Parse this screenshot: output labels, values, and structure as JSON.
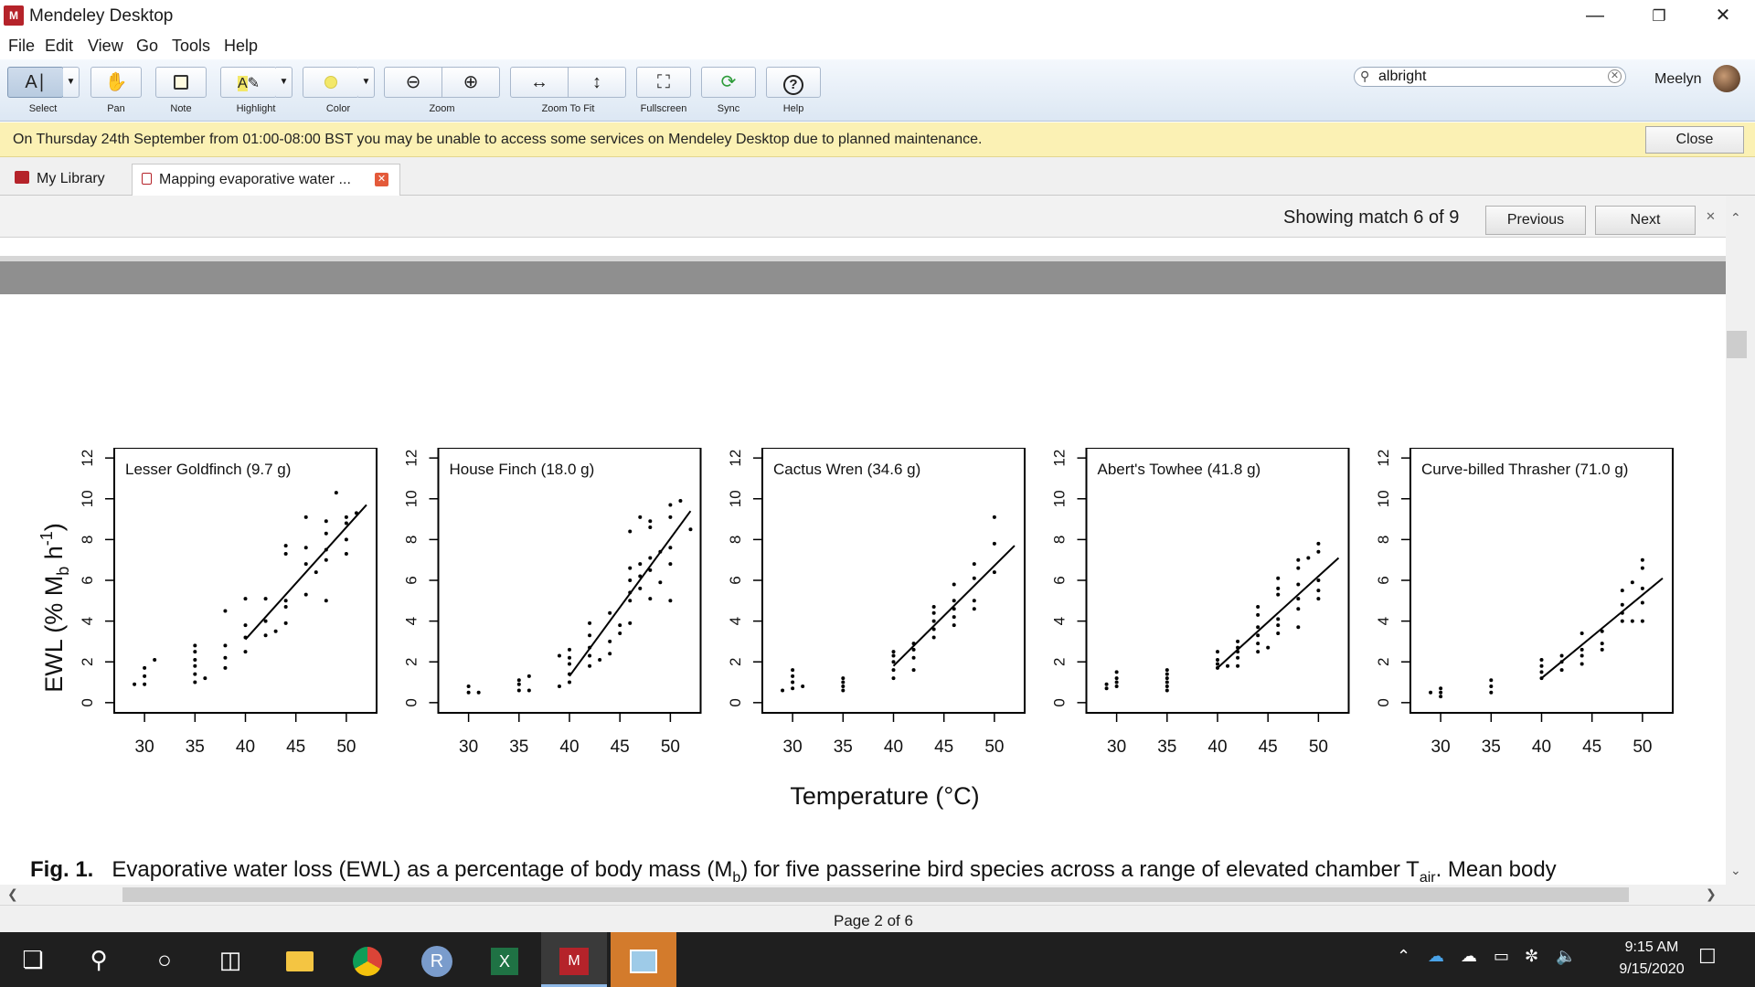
{
  "window": {
    "title": "Mendeley Desktop",
    "logo_text": "M"
  },
  "menu": [
    "File",
    "Edit",
    "View",
    "Go",
    "Tools",
    "Help"
  ],
  "toolbar": {
    "select": "Select",
    "pan": "Pan",
    "note": "Note",
    "highlight": "Highlight",
    "color": "Color",
    "zoom": "Zoom",
    "zoom_to_fit": "Zoom To Fit",
    "fullscreen": "Fullscreen",
    "sync": "Sync",
    "help": "Help",
    "search_value": "albright",
    "user_name": "Meelyn",
    "sync_color": "#2e9c3a",
    "color_swatch": "#f3e86a"
  },
  "notice": {
    "text": "On Thursday 24th September from 01:00-08:00 BST you may be unable to access some services on Mendeley Desktop due to planned maintenance.",
    "close_label": "Close"
  },
  "tabs": {
    "library": "My Library",
    "document": "Mapping evaporative water ..."
  },
  "find": {
    "status": "Showing match 6 of 9",
    "previous": "Previous",
    "next": "Next"
  },
  "figure": {
    "y_axis_label": "EWL (% M",
    "y_axis_sub": "b",
    "y_axis_mid": " h",
    "y_axis_sup": "-1",
    "y_axis_end": ")",
    "x_axis_label": "Temperature (°C)",
    "caption_prefix": "Fig. 1.",
    "caption_text": "Evaporative water loss (EWL) as a percentage of body mass (M",
    "caption_sub": "b",
    "caption_mid": ") for five passerine bird species across a range of elevated chamber T",
    "caption_sub2": "air",
    "caption_end": ". Mean body",
    "x_ticks": [
      "30",
      "35",
      "40",
      "45",
      "50"
    ],
    "y_ticks": [
      "0",
      "2",
      "4",
      "6",
      "8",
      "10",
      "12"
    ]
  },
  "chart_data": {
    "type": "scatter",
    "xlabel": "Temperature (°C)",
    "ylabel": "EWL (% Mb h-1)",
    "xlim": [
      27,
      53
    ],
    "ylim": [
      -0.5,
      12.5
    ],
    "panels": [
      {
        "title": "Lesser Goldfinch (9.7 g)",
        "line": [
          [
            40,
            3.1
          ],
          [
            52,
            9.7
          ]
        ],
        "points": [
          [
            29,
            0.9
          ],
          [
            30,
            0.9
          ],
          [
            30,
            1.3
          ],
          [
            30,
            1.7
          ],
          [
            31,
            2.1
          ],
          [
            35,
            1.0
          ],
          [
            35,
            1.4
          ],
          [
            35,
            1.8
          ],
          [
            35,
            2.1
          ],
          [
            35,
            2.5
          ],
          [
            35,
            2.8
          ],
          [
            36,
            1.2
          ],
          [
            38,
            1.7
          ],
          [
            38,
            2.2
          ],
          [
            38,
            2.8
          ],
          [
            38,
            4.5
          ],
          [
            40,
            2.5
          ],
          [
            40,
            3.2
          ],
          [
            40,
            3.8
          ],
          [
            40,
            5.1
          ],
          [
            42,
            3.3
          ],
          [
            42,
            4.0
          ],
          [
            42,
            5.1
          ],
          [
            43,
            3.5
          ],
          [
            44,
            3.9
          ],
          [
            44,
            4.7
          ],
          [
            44,
            5.0
          ],
          [
            44,
            7.3
          ],
          [
            44,
            7.7
          ],
          [
            46,
            5.3
          ],
          [
            46,
            6.8
          ],
          [
            46,
            7.6
          ],
          [
            46,
            9.1
          ],
          [
            47,
            6.4
          ],
          [
            48,
            5.0
          ],
          [
            48,
            7.0
          ],
          [
            48,
            7.5
          ],
          [
            48,
            8.3
          ],
          [
            48,
            8.9
          ],
          [
            49,
            10.3
          ],
          [
            50,
            7.3
          ],
          [
            50,
            8.0
          ],
          [
            50,
            8.8
          ],
          [
            50,
            9.1
          ],
          [
            51,
            9.3
          ]
        ]
      },
      {
        "title": "House Finch (18.0 g)",
        "line": [
          [
            40,
            1.3
          ],
          [
            52,
            9.4
          ]
        ],
        "points": [
          [
            30,
            0.5
          ],
          [
            30,
            0.8
          ],
          [
            31,
            0.5
          ],
          [
            35,
            0.6
          ],
          [
            35,
            0.9
          ],
          [
            35,
            1.1
          ],
          [
            36,
            0.6
          ],
          [
            36,
            1.3
          ],
          [
            39,
            0.8
          ],
          [
            39,
            2.3
          ],
          [
            40,
            1.0
          ],
          [
            40,
            1.4
          ],
          [
            40,
            1.9
          ],
          [
            40,
            2.2
          ],
          [
            40,
            2.6
          ],
          [
            42,
            1.8
          ],
          [
            42,
            2.3
          ],
          [
            42,
            2.7
          ],
          [
            42,
            3.3
          ],
          [
            42,
            3.9
          ],
          [
            43,
            2.1
          ],
          [
            44,
            2.4
          ],
          [
            44,
            3.0
          ],
          [
            44,
            4.4
          ],
          [
            45,
            3.4
          ],
          [
            45,
            3.8
          ],
          [
            46,
            3.9
          ],
          [
            46,
            5.0
          ],
          [
            46,
            5.4
          ],
          [
            46,
            6.0
          ],
          [
            46,
            6.6
          ],
          [
            46,
            8.4
          ],
          [
            47,
            5.6
          ],
          [
            47,
            6.2
          ],
          [
            47,
            6.8
          ],
          [
            47,
            9.1
          ],
          [
            48,
            5.1
          ],
          [
            48,
            6.5
          ],
          [
            48,
            7.1
          ],
          [
            48,
            8.6
          ],
          [
            48,
            8.9
          ],
          [
            49,
            5.9
          ],
          [
            49,
            7.4
          ],
          [
            50,
            5.0
          ],
          [
            50,
            6.8
          ],
          [
            50,
            7.6
          ],
          [
            50,
            9.1
          ],
          [
            50,
            9.7
          ],
          [
            51,
            9.9
          ],
          [
            52,
            8.5
          ]
        ]
      },
      {
        "title": "Cactus Wren (34.6 g)",
        "line": [
          [
            40,
            1.8
          ],
          [
            52,
            7.7
          ]
        ],
        "points": [
          [
            29,
            0.6
          ],
          [
            30,
            0.7
          ],
          [
            30,
            1.0
          ],
          [
            30,
            1.3
          ],
          [
            30,
            1.6
          ],
          [
            31,
            0.8
          ],
          [
            35,
            0.6
          ],
          [
            35,
            0.8
          ],
          [
            35,
            1.0
          ],
          [
            35,
            1.2
          ],
          [
            40,
            1.2
          ],
          [
            40,
            1.6
          ],
          [
            40,
            2.0
          ],
          [
            40,
            2.3
          ],
          [
            40,
            2.5
          ],
          [
            42,
            1.6
          ],
          [
            42,
            2.2
          ],
          [
            42,
            2.6
          ],
          [
            42,
            2.9
          ],
          [
            44,
            3.2
          ],
          [
            44,
            3.6
          ],
          [
            44,
            4.0
          ],
          [
            44,
            4.4
          ],
          [
            44,
            4.7
          ],
          [
            46,
            3.8
          ],
          [
            46,
            4.2
          ],
          [
            46,
            4.6
          ],
          [
            46,
            5.0
          ],
          [
            46,
            5.8
          ],
          [
            48,
            4.6
          ],
          [
            48,
            5.0
          ],
          [
            48,
            6.1
          ],
          [
            48,
            6.8
          ],
          [
            50,
            6.4
          ],
          [
            50,
            7.8
          ],
          [
            50,
            9.1
          ]
        ]
      },
      {
        "title": "Abert's Towhee (41.8 g)",
        "line": [
          [
            40,
            1.7
          ],
          [
            52,
            7.1
          ]
        ],
        "points": [
          [
            29,
            0.7
          ],
          [
            29,
            0.9
          ],
          [
            30,
            0.8
          ],
          [
            30,
            1.0
          ],
          [
            30,
            1.2
          ],
          [
            30,
            1.5
          ],
          [
            35,
            0.6
          ],
          [
            35,
            0.8
          ],
          [
            35,
            1.0
          ],
          [
            35,
            1.2
          ],
          [
            35,
            1.4
          ],
          [
            35,
            1.6
          ],
          [
            40,
            1.7
          ],
          [
            40,
            1.9
          ],
          [
            40,
            2.1
          ],
          [
            40,
            2.5
          ],
          [
            41,
            1.8
          ],
          [
            42,
            1.8
          ],
          [
            42,
            2.2
          ],
          [
            42,
            2.5
          ],
          [
            42,
            2.7
          ],
          [
            42,
            3.0
          ],
          [
            44,
            2.5
          ],
          [
            44,
            2.9
          ],
          [
            44,
            3.3
          ],
          [
            44,
            3.7
          ],
          [
            44,
            4.3
          ],
          [
            44,
            4.7
          ],
          [
            45,
            2.7
          ],
          [
            46,
            3.4
          ],
          [
            46,
            3.8
          ],
          [
            46,
            4.1
          ],
          [
            46,
            5.3
          ],
          [
            46,
            5.6
          ],
          [
            46,
            6.1
          ],
          [
            48,
            3.7
          ],
          [
            48,
            4.6
          ],
          [
            48,
            5.1
          ],
          [
            48,
            5.8
          ],
          [
            48,
            6.6
          ],
          [
            48,
            7.0
          ],
          [
            49,
            7.1
          ],
          [
            50,
            5.1
          ],
          [
            50,
            5.5
          ],
          [
            50,
            6.0
          ],
          [
            50,
            7.4
          ],
          [
            50,
            7.8
          ]
        ]
      },
      {
        "title": "Curve-billed Thrasher (71.0 g)",
        "line": [
          [
            40,
            1.2
          ],
          [
            52,
            6.1
          ]
        ],
        "points": [
          [
            29,
            0.5
          ],
          [
            30,
            0.3
          ],
          [
            30,
            0.5
          ],
          [
            30,
            0.7
          ],
          [
            35,
            0.5
          ],
          [
            35,
            0.8
          ],
          [
            35,
            1.1
          ],
          [
            40,
            1.2
          ],
          [
            40,
            1.5
          ],
          [
            40,
            1.8
          ],
          [
            40,
            2.1
          ],
          [
            42,
            1.6
          ],
          [
            42,
            2.0
          ],
          [
            42,
            2.3
          ],
          [
            44,
            1.9
          ],
          [
            44,
            2.3
          ],
          [
            44,
            2.6
          ],
          [
            44,
            3.4
          ],
          [
            46,
            2.6
          ],
          [
            46,
            2.9
          ],
          [
            46,
            3.5
          ],
          [
            48,
            4.0
          ],
          [
            48,
            4.4
          ],
          [
            48,
            4.8
          ],
          [
            48,
            5.5
          ],
          [
            49,
            4.0
          ],
          [
            49,
            5.9
          ],
          [
            50,
            4.0
          ],
          [
            50,
            4.9
          ],
          [
            50,
            5.6
          ],
          [
            50,
            6.6
          ],
          [
            50,
            7.0
          ]
        ]
      }
    ]
  },
  "status": {
    "page": "Page 2 of 6"
  },
  "taskbar": {
    "time": "9:15 AM",
    "date": "9/15/2020"
  }
}
